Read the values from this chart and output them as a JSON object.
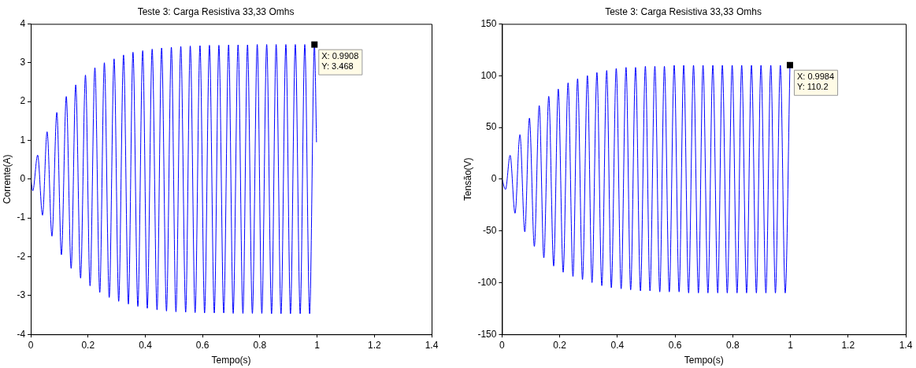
{
  "chart_data": [
    {
      "type": "line",
      "title": "Teste 3: Carga Resistiva 33,33 Omhs",
      "xlabel": "Tempo(s)",
      "ylabel": "Corrente(A)",
      "xlim": [
        0,
        1.4
      ],
      "xticks": [
        0,
        0.2,
        0.4,
        0.6,
        0.8,
        1,
        1.2,
        1.4
      ],
      "ylim": [
        -4,
        4
      ],
      "yticks": [
        -4,
        -3,
        -2,
        -1,
        0,
        1,
        2,
        3,
        4
      ],
      "grid": false,
      "legend": false,
      "annotations": [
        {
          "text": "X: 0.9908\nY: 3.468",
          "x": 0.9908,
          "y": 3.468
        }
      ],
      "series": [
        {
          "color": "#0000ff",
          "x": [
            0,
            0.007,
            0.024,
            0.041,
            0.057,
            0.074,
            0.091,
            0.107,
            0.124,
            0.141,
            0.157,
            0.174,
            0.191,
            0.207,
            0.224,
            0.241,
            0.257,
            0.274,
            0.291,
            0.307,
            0.324,
            0.341,
            0.357,
            0.374,
            0.391,
            0.407,
            0.424,
            0.441,
            0.457,
            0.474,
            0.491,
            0.507,
            0.524,
            0.541,
            0.557,
            0.574,
            0.591,
            0.607,
            0.624,
            0.641,
            0.657,
            0.674,
            0.691,
            0.707,
            0.724,
            0.741,
            0.757,
            0.774,
            0.791,
            0.807,
            0.824,
            0.841,
            0.857,
            0.874,
            0.891,
            0.907,
            0.924,
            0.941,
            0.957,
            0.974,
            0.9908,
            0.998
          ],
          "values": [
            0,
            -0.3,
            0.62,
            -0.93,
            1.22,
            -1.47,
            1.72,
            -1.95,
            2.13,
            -2.3,
            2.43,
            -2.55,
            2.68,
            -2.75,
            2.87,
            -2.92,
            3.0,
            -3.05,
            3.1,
            -3.15,
            3.2,
            -3.22,
            3.27,
            -3.28,
            3.31,
            -3.33,
            3.35,
            -3.37,
            3.38,
            -3.4,
            3.4,
            -3.42,
            3.42,
            -3.43,
            3.43,
            -3.44,
            3.44,
            -3.45,
            3.45,
            -3.45,
            3.45,
            -3.45,
            3.46,
            -3.46,
            3.46,
            -3.46,
            3.46,
            -3.46,
            3.47,
            -3.46,
            3.47,
            -3.47,
            3.47,
            -3.47,
            3.47,
            -3.47,
            3.47,
            -3.47,
            3.47,
            -3.47,
            3.468,
            0.95
          ]
        }
      ]
    },
    {
      "type": "line",
      "title": "Teste 3: Carga Resistiva 33,33 Omhs",
      "xlabel": "Tempo(s)",
      "ylabel": "Tensão(V)",
      "xlim": [
        0,
        1.4
      ],
      "xticks": [
        0,
        0.2,
        0.4,
        0.6,
        0.8,
        1,
        1.2,
        1.4
      ],
      "ylim": [
        -150,
        150
      ],
      "yticks": [
        -150,
        -100,
        -50,
        0,
        50,
        100,
        150
      ],
      "grid": false,
      "legend": false,
      "annotations": [
        {
          "text": "X: 0.9984\nY: 110.2",
          "x": 0.9984,
          "y": 110.2
        }
      ],
      "series": [
        {
          "color": "#0000ff",
          "x": [
            0,
            0.012,
            0.028,
            0.045,
            0.062,
            0.079,
            0.095,
            0.112,
            0.129,
            0.145,
            0.162,
            0.179,
            0.195,
            0.212,
            0.229,
            0.246,
            0.262,
            0.279,
            0.296,
            0.312,
            0.329,
            0.346,
            0.363,
            0.379,
            0.396,
            0.413,
            0.43,
            0.446,
            0.463,
            0.48,
            0.497,
            0.513,
            0.53,
            0.547,
            0.563,
            0.58,
            0.597,
            0.614,
            0.63,
            0.647,
            0.664,
            0.681,
            0.697,
            0.714,
            0.731,
            0.748,
            0.764,
            0.781,
            0.798,
            0.815,
            0.831,
            0.848,
            0.865,
            0.882,
            0.898,
            0.915,
            0.932,
            0.948,
            0.965,
            0.982,
            0.9984
          ],
          "values": [
            0,
            -10,
            23,
            -33,
            43,
            -51,
            59,
            -65,
            71,
            -76,
            80,
            -84,
            87,
            -90,
            93,
            -94,
            97,
            -97,
            100,
            -100,
            103,
            -103,
            105,
            -105,
            107,
            -106,
            108,
            -107,
            108,
            -108,
            109,
            -108,
            109,
            -109,
            109,
            -109,
            110,
            -109,
            110,
            -110,
            110,
            -110,
            110,
            -110,
            110,
            -110,
            110,
            -110,
            110,
            -110,
            110,
            -110,
            110,
            -110,
            110,
            -110,
            110,
            -110,
            110,
            -110,
            110.2
          ]
        }
      ]
    }
  ]
}
